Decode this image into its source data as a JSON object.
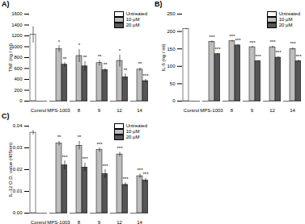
{
  "chart_data": [
    {
      "type": "bar",
      "title": "A)",
      "ylabel": "TNF (ng / ml)",
      "categories": [
        "Control",
        "MPS-1003",
        "8",
        "9",
        "12",
        "14"
      ],
      "series": [
        {
          "name": "Untreated",
          "color": "#ffffff",
          "values": [
            1220,
            null,
            null,
            null,
            null,
            null
          ],
          "errors": [
            150,
            null,
            null,
            null,
            null,
            null
          ],
          "significance": [
            null,
            null,
            null,
            null,
            null,
            null
          ]
        },
        {
          "name": "10 μM",
          "color": "#bdbdbd",
          "values": [
            null,
            960,
            830,
            700,
            740,
            580
          ],
          "errors": [
            null,
            60,
            120,
            50,
            110,
            30
          ],
          "significance": [
            null,
            "*",
            "*",
            "**",
            "*",
            "**"
          ]
        },
        {
          "name": "20 μM",
          "color": "#555555",
          "values": [
            null,
            670,
            640,
            570,
            440,
            370
          ],
          "errors": [
            null,
            40,
            90,
            30,
            60,
            30
          ],
          "significance": [
            null,
            "**",
            "**",
            "**",
            "**",
            "***"
          ]
        }
      ],
      "ylim": [
        0,
        1600
      ],
      "yticks": [
        0,
        200,
        400,
        600,
        800,
        1000,
        1200,
        1400,
        1600
      ],
      "legend": "top-right"
    },
    {
      "type": "bar",
      "title": "B)",
      "ylabel": "IL-6 (ng / ml)",
      "categories": [
        "Control",
        "MPS-1003",
        "8",
        "9",
        "12",
        "14"
      ],
      "series": [
        {
          "name": "Untreated",
          "color": "#ffffff",
          "values": [
            207,
            null,
            null,
            null,
            null,
            null
          ],
          "errors": [
            2,
            null,
            null,
            null,
            null,
            null
          ],
          "significance": [
            null,
            null,
            null,
            null,
            null,
            null
          ]
        },
        {
          "name": "10 μM",
          "color": "#bdbdbd",
          "values": [
            null,
            170,
            172,
            155,
            155,
            150
          ],
          "errors": [
            null,
            3,
            3,
            2,
            3,
            3
          ],
          "significance": [
            null,
            "***",
            "***",
            "***",
            "***",
            "***"
          ]
        },
        {
          "name": "20 μM",
          "color": "#555555",
          "values": [
            null,
            135,
            160,
            115,
            125,
            115
          ],
          "errors": [
            null,
            3,
            3,
            2,
            3,
            3
          ],
          "significance": [
            null,
            "***",
            "***",
            "***",
            "***",
            "***"
          ]
        }
      ],
      "ylim": [
        0,
        250
      ],
      "yticks": [
        0,
        50,
        100,
        150,
        200,
        250
      ],
      "legend": "top-right"
    },
    {
      "type": "bar",
      "title": "C)",
      "ylabel": "IL-12 O.D. value (405nm)",
      "categories": [
        "Control",
        "MPS-1003",
        "8",
        "9",
        "12",
        "14"
      ],
      "series": [
        {
          "name": "Untreated",
          "color": "#ffffff",
          "values": [
            0.037,
            null,
            null,
            null,
            null,
            null
          ],
          "errors": [
            0.001,
            null,
            null,
            null,
            null,
            null
          ],
          "significance": [
            null,
            null,
            null,
            null,
            null,
            null
          ]
        },
        {
          "name": "10 μM",
          "color": "#bdbdbd",
          "values": [
            null,
            0.032,
            0.031,
            0.029,
            0.027,
            0.017
          ],
          "errors": [
            null,
            0.001,
            0.002,
            0.001,
            0.001,
            0.001
          ],
          "significance": [
            null,
            "**",
            "**",
            "***",
            "***",
            "***"
          ]
        },
        {
          "name": "20 μM",
          "color": "#555555",
          "values": [
            null,
            0.022,
            0.021,
            0.018,
            0.013,
            0.015
          ],
          "errors": [
            null,
            0.002,
            0.002,
            0.002,
            0.001,
            0.001
          ],
          "significance": [
            null,
            "***",
            "***",
            "***",
            "***",
            "***"
          ]
        }
      ],
      "ylim": [
        0,
        0.04
      ],
      "yticks": [
        {
          "value": 0,
          "label": "0.00"
        },
        {
          "value": 0.01,
          "label": "0.01"
        },
        {
          "value": 0.02,
          "label": "0.02"
        },
        {
          "value": 0.03,
          "label": "0.03"
        },
        {
          "value": 0.04,
          "label": "0.04"
        }
      ],
      "legend": "top-right"
    }
  ]
}
